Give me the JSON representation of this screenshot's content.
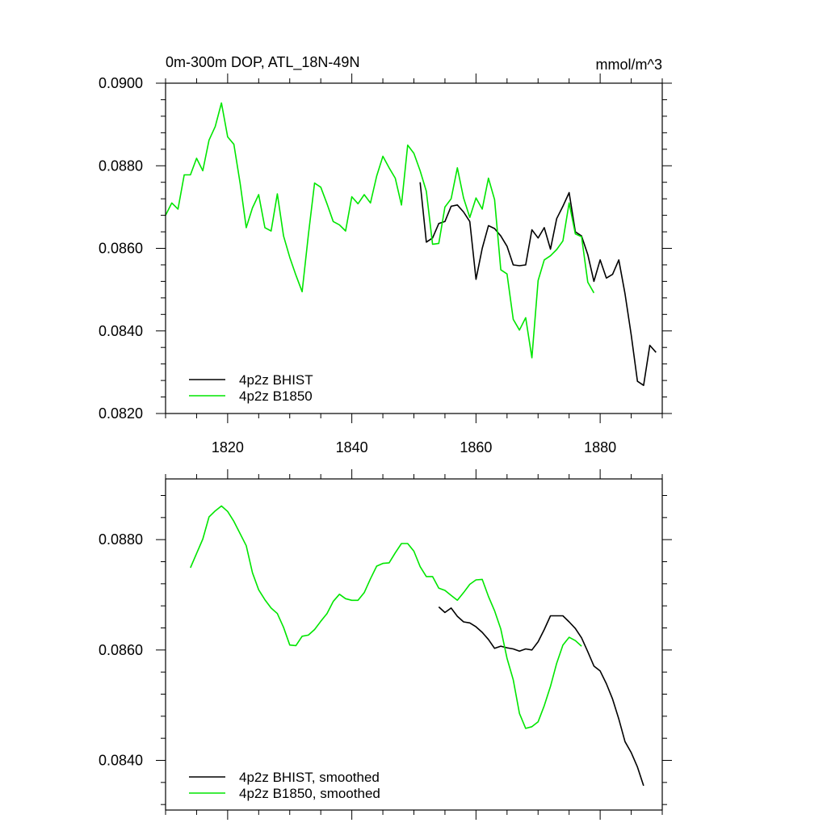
{
  "chart_data": [
    {
      "type": "line",
      "title": "0m-300m DOP, ATL_18N-49N",
      "units": "mmol/m^3",
      "xlabel": "",
      "ylabel": "",
      "xlim": [
        1810,
        1890
      ],
      "ylim": [
        0.082,
        0.09
      ],
      "xticks": [
        1820,
        1840,
        1860,
        1880
      ],
      "xtick_labels": [
        "1820",
        "1840",
        "1860",
        "1880"
      ],
      "yticks": [
        0.082,
        0.084,
        0.086,
        0.088,
        0.09
      ],
      "ytick_labels": [
        "0.0820",
        "0.0840",
        "0.0860",
        "0.0880",
        "0.0900"
      ],
      "grid": false,
      "legend_position": "bottom-left",
      "series": [
        {
          "name": "4p2z BHIST",
          "color": "#000000",
          "x": [
            1851,
            1852,
            1853,
            1854,
            1855,
            1856,
            1857,
            1858,
            1859,
            1860,
            1861,
            1862,
            1863,
            1864,
            1865,
            1866,
            1867,
            1868,
            1869,
            1870,
            1871,
            1872,
            1873,
            1874,
            1875,
            1876,
            1877,
            1878,
            1879,
            1880,
            1881,
            1882,
            1883,
            1884,
            1885,
            1886,
            1887,
            1888,
            1889
          ],
          "y": [
            0.0876,
            0.08615,
            0.08625,
            0.0866,
            0.08665,
            0.08702,
            0.08705,
            0.08688,
            0.08665,
            0.08525,
            0.086,
            0.08655,
            0.08648,
            0.0863,
            0.08605,
            0.0856,
            0.08558,
            0.0856,
            0.08645,
            0.08625,
            0.0865,
            0.08598,
            0.08672,
            0.08702,
            0.08735,
            0.0864,
            0.0863,
            0.08585,
            0.0852,
            0.08572,
            0.08528,
            0.08537,
            0.08572,
            0.0849,
            0.0839,
            0.08278,
            0.08268,
            0.08365,
            0.08348
          ]
        },
        {
          "name": "4p2z B1850",
          "color": "#00e600",
          "x": [
            1810,
            1811,
            1812,
            1813,
            1814,
            1815,
            1816,
            1817,
            1818,
            1819,
            1820,
            1821,
            1822,
            1823,
            1824,
            1825,
            1826,
            1827,
            1828,
            1829,
            1830,
            1831,
            1832,
            1833,
            1834,
            1835,
            1836,
            1837,
            1838,
            1839,
            1840,
            1841,
            1842,
            1843,
            1844,
            1845,
            1846,
            1847,
            1848,
            1849,
            1850,
            1851,
            1852,
            1853,
            1854,
            1855,
            1856,
            1857,
            1858,
            1859,
            1860,
            1861,
            1862,
            1863,
            1864,
            1865,
            1866,
            1867,
            1868,
            1869,
            1870,
            1871,
            1872,
            1873,
            1874,
            1875,
            1876,
            1877,
            1878,
            1879
          ],
          "y": [
            0.0868,
            0.0871,
            0.08695,
            0.08778,
            0.08778,
            0.08818,
            0.08788,
            0.08862,
            0.08895,
            0.08952,
            0.0887,
            0.08852,
            0.08758,
            0.0865,
            0.08698,
            0.0873,
            0.0865,
            0.08642,
            0.08732,
            0.0863,
            0.08578,
            0.08535,
            0.08495,
            0.08632,
            0.08758,
            0.08748,
            0.08708,
            0.08665,
            0.08657,
            0.08642,
            0.08725,
            0.08708,
            0.0873,
            0.0871,
            0.08775,
            0.08823,
            0.08795,
            0.0877,
            0.08705,
            0.0885,
            0.0883,
            0.08788,
            0.08738,
            0.0861,
            0.08612,
            0.087,
            0.0872,
            0.08795,
            0.08722,
            0.08675,
            0.08722,
            0.08695,
            0.0877,
            0.08718,
            0.08548,
            0.08538,
            0.08428,
            0.08402,
            0.08432,
            0.08335,
            0.08522,
            0.08572,
            0.08582,
            0.08597,
            0.08618,
            0.0871,
            0.08635,
            0.08628,
            0.08518,
            0.08492
          ]
        }
      ]
    },
    {
      "type": "line",
      "title": "",
      "units": "",
      "xlabel": "",
      "ylabel": "",
      "xlim": [
        1810,
        1890
      ],
      "ylim": [
        0.0831,
        0.0891
      ],
      "xticks": [
        1820,
        1840,
        1860,
        1880
      ],
      "xtick_labels": [
        "",
        "",
        "",
        ""
      ],
      "yticks": [
        0.084,
        0.086,
        0.088
      ],
      "ytick_labels": [
        "0.0840",
        "0.0860",
        "0.0880"
      ],
      "grid": false,
      "legend_position": "bottom-left",
      "series": [
        {
          "name": "4p2z BHIST, smoothed",
          "color": "#000000",
          "x": [
            1854,
            1855,
            1856,
            1857,
            1858,
            1859,
            1860,
            1861,
            1862,
            1863,
            1864,
            1865,
            1866,
            1867,
            1868,
            1869,
            1870,
            1871,
            1872,
            1873,
            1874,
            1875,
            1876,
            1877,
            1878,
            1879,
            1880,
            1881,
            1882,
            1883,
            1884,
            1885,
            1886,
            1887
          ],
          "y": [
            0.08678,
            0.08668,
            0.08676,
            0.08661,
            0.08651,
            0.08649,
            0.08642,
            0.08632,
            0.08619,
            0.08603,
            0.08607,
            0.08604,
            0.08602,
            0.08598,
            0.08602,
            0.086,
            0.08615,
            0.08637,
            0.08662,
            0.08662,
            0.08662,
            0.08651,
            0.08639,
            0.08622,
            0.08597,
            0.08571,
            0.08562,
            0.08539,
            0.08511,
            0.08475,
            0.08434,
            0.08414,
            0.08388,
            0.08354
          ]
        },
        {
          "name": "4p2z B1850, smoothed",
          "color": "#00e600",
          "x": [
            1814,
            1815,
            1816,
            1817,
            1818,
            1819,
            1820,
            1821,
            1822,
            1823,
            1824,
            1825,
            1826,
            1827,
            1828,
            1829,
            1830,
            1831,
            1832,
            1833,
            1834,
            1835,
            1836,
            1837,
            1838,
            1839,
            1840,
            1841,
            1842,
            1843,
            1844,
            1845,
            1846,
            1847,
            1848,
            1849,
            1850,
            1851,
            1852,
            1853,
            1854,
            1855,
            1856,
            1857,
            1858,
            1859,
            1860,
            1861,
            1862,
            1863,
            1864,
            1865,
            1866,
            1867,
            1868,
            1869,
            1870,
            1871,
            1872,
            1873,
            1874,
            1875,
            1876,
            1877
          ],
          "y": [
            0.08749,
            0.08775,
            0.08801,
            0.08841,
            0.08852,
            0.08861,
            0.08851,
            0.08833,
            0.08811,
            0.08789,
            0.0874,
            0.08709,
            0.08691,
            0.08676,
            0.08666,
            0.08641,
            0.08609,
            0.08608,
            0.08625,
            0.08627,
            0.08637,
            0.08652,
            0.08666,
            0.08688,
            0.08701,
            0.08693,
            0.0869,
            0.0869,
            0.08704,
            0.08729,
            0.08752,
            0.08757,
            0.08758,
            0.08776,
            0.08793,
            0.08793,
            0.08779,
            0.08751,
            0.08733,
            0.08733,
            0.08712,
            0.08708,
            0.08699,
            0.0869,
            0.08704,
            0.08719,
            0.08727,
            0.08728,
            0.08697,
            0.08671,
            0.08638,
            0.08585,
            0.08546,
            0.08485,
            0.08458,
            0.08461,
            0.0847,
            0.08499,
            0.08534,
            0.08576,
            0.08609,
            0.08623,
            0.08617,
            0.08607
          ]
        }
      ]
    }
  ]
}
